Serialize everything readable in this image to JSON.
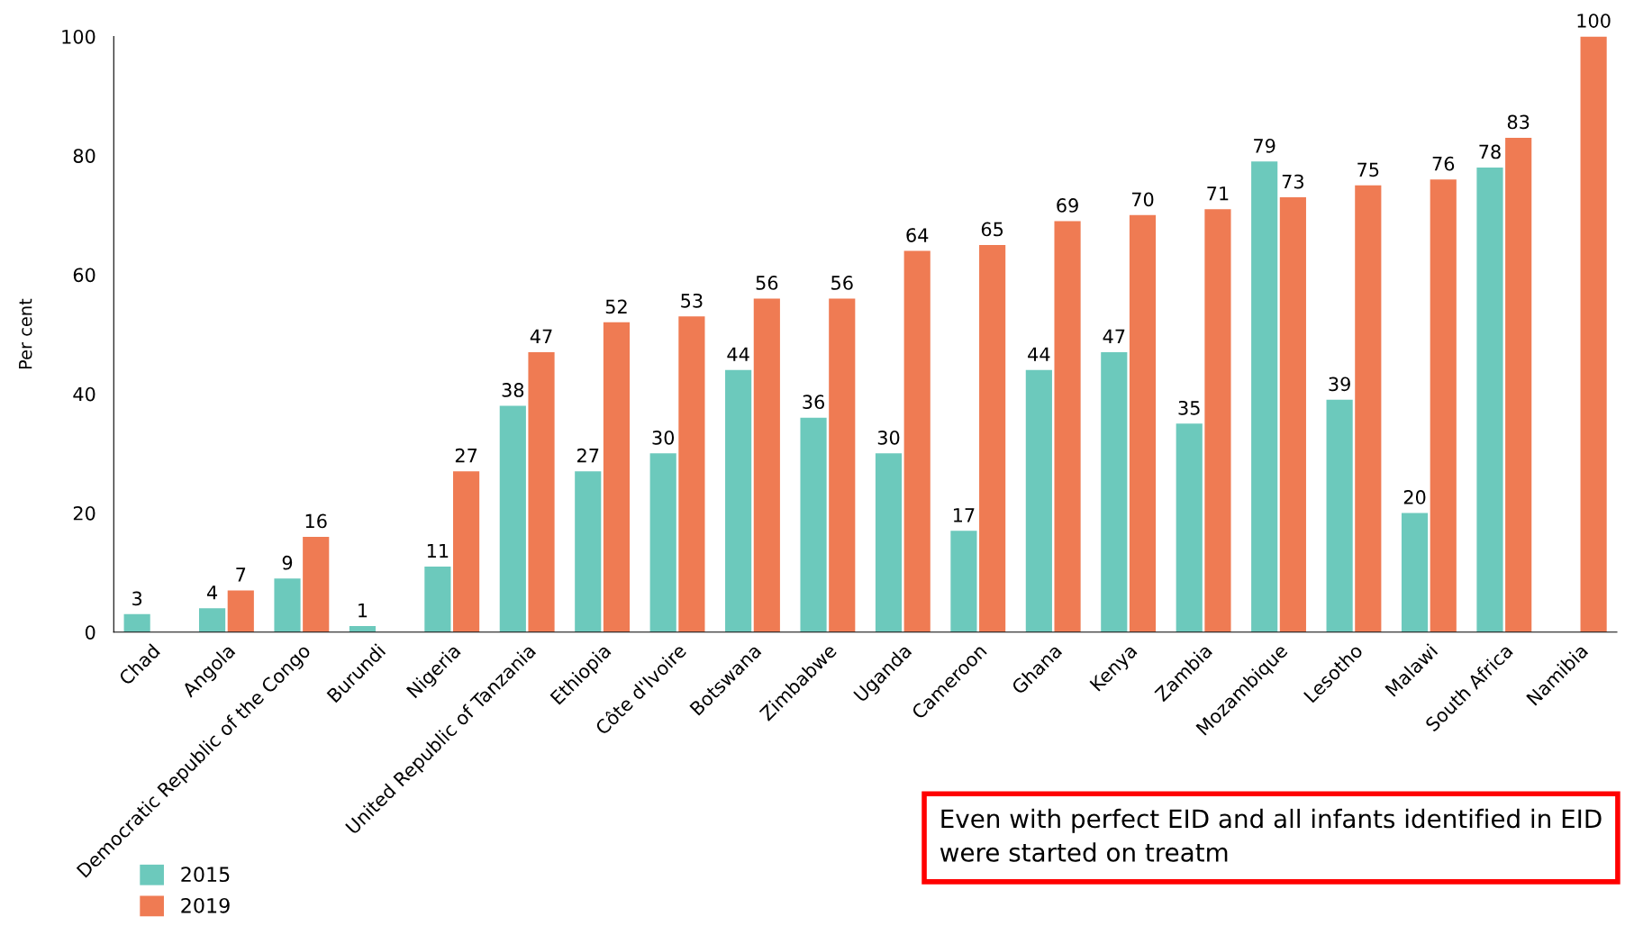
{
  "chart_data": {
    "type": "bar",
    "ylabel": "Per cent",
    "categories": [
      "Chad",
      "Angola",
      "Democratic Republic of the Congo",
      "Burundi",
      "Nigeria",
      "United Republic of Tanzania",
      "Ethiopia",
      "Côte d'Ivoire",
      "Botswana",
      "Zimbabwe",
      "Uganda",
      "Cameroon",
      "Ghana",
      "Kenya",
      "Zambia",
      "Mozambique",
      "Lesotho",
      "Malawi",
      "South Africa",
      "Namibia"
    ],
    "series": [
      {
        "name": "2015",
        "color": "#6cc9bc",
        "values": [
          3,
          4,
          9,
          1,
          11,
          38,
          27,
          30,
          44,
          36,
          30,
          17,
          44,
          47,
          35,
          79,
          39,
          20,
          78,
          null
        ]
      },
      {
        "name": "2019",
        "color": "#ef7b53",
        "values": [
          null,
          7,
          16,
          null,
          27,
          47,
          52,
          53,
          56,
          56,
          64,
          65,
          69,
          70,
          71,
          73,
          75,
          76,
          83,
          100
        ]
      }
    ],
    "ylim": [
      0,
      100
    ],
    "yticks": [
      0,
      20,
      40,
      60,
      80,
      100
    ],
    "data_labels": true,
    "grid": false,
    "legend": "bottom left",
    "annotations": [
      "Even with perfect EID and all infants identified in EID were started on treatm"
    ]
  }
}
